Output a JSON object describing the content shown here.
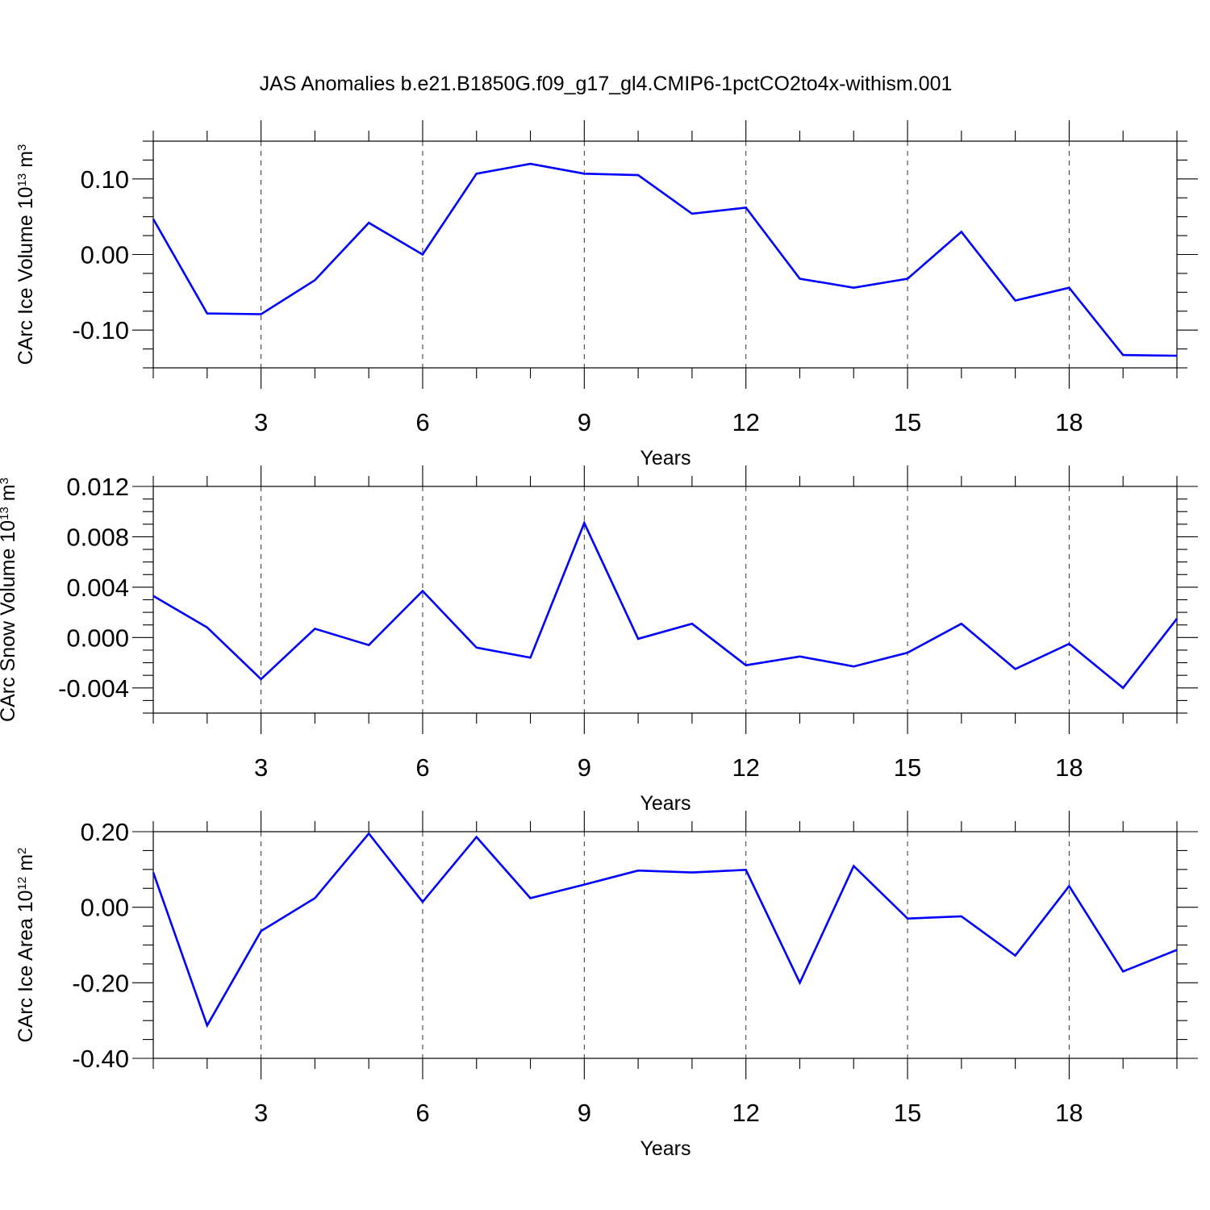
{
  "title": "JAS Anomalies b.e21.B1850G.f09_g17_gl4.CMIP6-1pctCO2to4x-withism.001",
  "chart_data": [
    {
      "type": "line",
      "ylabel": {
        "main": "CArc Ice Volume 10",
        "exp": "13",
        "unit": " m",
        "unit_exp": "3"
      },
      "xlabel": "Years",
      "xlim": [
        1,
        20
      ],
      "ylim": [
        -0.15,
        0.15
      ],
      "xticks": [
        3,
        6,
        9,
        12,
        15,
        18
      ],
      "xtick_labels": [
        "3",
        "6",
        "9",
        "12",
        "15",
        "18"
      ],
      "yticks": [
        -0.1,
        0.0,
        0.1
      ],
      "ytick_labels": [
        "-0.10",
        "0.00",
        "0.10"
      ],
      "y_minor_step": 0.025,
      "x": [
        1,
        2,
        3,
        4,
        5,
        6,
        7,
        8,
        9,
        10,
        11,
        12,
        13,
        14,
        15,
        16,
        17,
        18,
        19,
        20
      ],
      "values": [
        0.047,
        -0.078,
        -0.079,
        -0.034,
        0.042,
        0.0,
        0.107,
        0.12,
        0.107,
        0.105,
        0.054,
        0.062,
        -0.032,
        -0.044,
        -0.032,
        0.03,
        -0.061,
        -0.044,
        -0.133,
        -0.134
      ],
      "color": "#0000ff"
    },
    {
      "type": "line",
      "ylabel": {
        "main": "CArc Snow Volume 10",
        "exp": "13",
        "unit": " m",
        "unit_exp": "3"
      },
      "xlabel": "Years",
      "xlim": [
        1,
        20
      ],
      "ylim": [
        -0.006,
        0.012
      ],
      "xticks": [
        3,
        6,
        9,
        12,
        15,
        18
      ],
      "xtick_labels": [
        "3",
        "6",
        "9",
        "12",
        "15",
        "18"
      ],
      "yticks": [
        -0.004,
        0.0,
        0.004,
        0.008,
        0.012
      ],
      "ytick_labels": [
        "-0.004",
        "0.000",
        "0.004",
        "0.008",
        "0.012"
      ],
      "y_minor_step": 0.001,
      "x": [
        1,
        2,
        3,
        4,
        5,
        6,
        7,
        8,
        9,
        10,
        11,
        12,
        13,
        14,
        15,
        16,
        17,
        18,
        19,
        20
      ],
      "values": [
        0.0033,
        0.0008,
        -0.0033,
        0.0007,
        -0.0006,
        0.0037,
        -0.0008,
        -0.0016,
        0.0091,
        -0.0001,
        0.0011,
        -0.0022,
        -0.0015,
        -0.0023,
        -0.0012,
        0.0011,
        -0.0025,
        -0.0005,
        -0.004,
        0.0015
      ],
      "color": "#0000ff"
    },
    {
      "type": "line",
      "ylabel": {
        "main": "CArc Ice Area 10",
        "exp": "12",
        "unit": " m",
        "unit_exp": "2"
      },
      "xlabel": "Years",
      "xlim": [
        1,
        20
      ],
      "ylim": [
        -0.4,
        0.2
      ],
      "xticks": [
        3,
        6,
        9,
        12,
        15,
        18
      ],
      "xtick_labels": [
        "3",
        "6",
        "9",
        "12",
        "15",
        "18"
      ],
      "yticks": [
        -0.4,
        -0.2,
        0.0,
        0.2
      ],
      "ytick_labels": [
        "-0.40",
        "-0.20",
        "0.00",
        "0.20"
      ],
      "y_minor_step": 0.05,
      "x": [
        1,
        2,
        3,
        4,
        5,
        6,
        7,
        8,
        9,
        10,
        11,
        12,
        13,
        14,
        15,
        16,
        17,
        18,
        19,
        20
      ],
      "values": [
        0.092,
        -0.313,
        -0.063,
        0.024,
        0.195,
        0.014,
        0.186,
        0.024,
        0.06,
        0.097,
        0.092,
        0.099,
        -0.2,
        0.109,
        -0.03,
        -0.024,
        -0.128,
        0.056,
        -0.17,
        -0.113
      ],
      "color": "#0000ff"
    }
  ]
}
